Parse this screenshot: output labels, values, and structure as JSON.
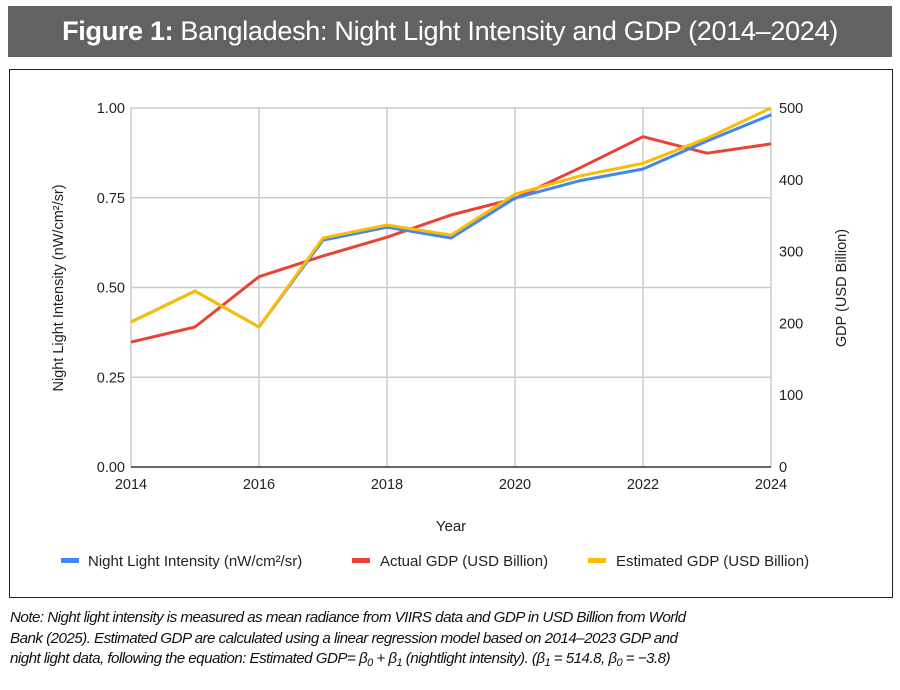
{
  "figure": {
    "label": "Figure 1:",
    "title": "Bangladesh: Night Light Intensity and GDP (2014–2024)"
  },
  "note": {
    "line1": "Note: Night light intensity is measured as mean radiance from VIIRS data and GDP in USD Billion from World",
    "line2": "Bank (2025). Estimated GDP are calculated using a linear regression model based on 2014–2023 GDP and",
    "line3_a": "night light data, following the equation: Estimated GDP= ",
    "beta": "β",
    "sub0": "0",
    "sub1": "1",
    "line3_b": " + ",
    "line3_c": " (nightlight intensity). (",
    "line3_d": " = 514.8, ",
    "line3_e": " = −3.8)"
  },
  "colors": {
    "night_light": "#4285f4",
    "actual_gdp": "#ea4335",
    "estimated_gdp": "#fbbc04",
    "grid": "#cccccc",
    "title_bar": "#626262"
  },
  "chart_data": {
    "type": "line",
    "title": "Bangladesh: Night Light Intensity and GDP (2014–2024)",
    "xlabel": "Year",
    "ylabel_left": "Night Light Intensity (nW/cm²/sr)",
    "ylabel_right": "GDP (USD Billion)",
    "x": [
      2014,
      2015,
      2016,
      2017,
      2018,
      2019,
      2020,
      2021,
      2022,
      2023,
      2024
    ],
    "x_ticks": [
      "2014",
      "2016",
      "2018",
      "2020",
      "2022",
      "2024"
    ],
    "x_range": [
      2014,
      2024
    ],
    "y_left_range": [
      0,
      1
    ],
    "y_left_ticks": [
      "0.00",
      "0.25",
      "0.50",
      "0.75",
      "1.00"
    ],
    "y_right_range": [
      0,
      500
    ],
    "y_right_ticks": [
      "0",
      "100",
      "200",
      "300",
      "400",
      "500"
    ],
    "grid": true,
    "legend_position": "bottom",
    "series": [
      {
        "name": "Night Light Intensity (nW/cm²/sr)",
        "axis": "left",
        "color_key": "night_light",
        "values": [
          0.404,
          0.49,
          0.39,
          0.632,
          0.668,
          0.638,
          0.749,
          0.797,
          0.83,
          0.908,
          0.981
        ]
      },
      {
        "name": "Actual GDP (USD Billion)",
        "axis": "right",
        "color_key": "actual_gdp",
        "values": [
          174,
          195,
          265,
          294,
          320,
          351,
          374,
          416,
          460,
          437,
          450
        ]
      },
      {
        "name": "Estimated GDP (USD Billion)",
        "axis": "right",
        "color_key": "estimated_gdp",
        "values": [
          202,
          245,
          195,
          319,
          337,
          323,
          380,
          405,
          423,
          458,
          500
        ]
      }
    ]
  }
}
